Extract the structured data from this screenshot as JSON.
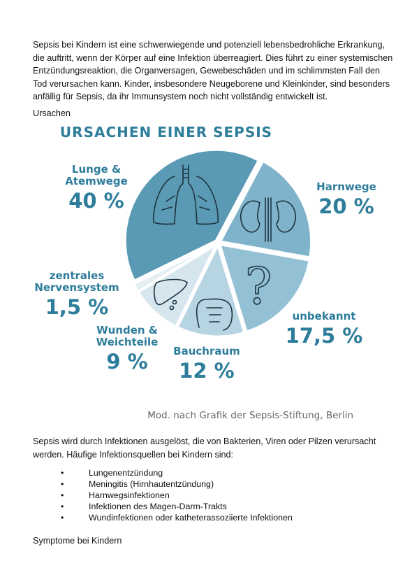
{
  "intro": "Sepsis bei Kindern ist eine schwerwiegende und potenziell lebensbedrohliche Erkrankung, die auftritt, wenn der Körper auf eine Infektion überreagiert. Dies führt zu einer systemischen Entzündungsreaktion, die Organversagen, Gewebeschäden und im schlimmsten Fall den Tod verursachen kann. Kinder, insbesondere Neugeborene und Kleinkinder, sind besonders anfällig für Sepsis, da ihr Immunsystem noch nicht vollständig entwickelt ist.",
  "section_causes": "Ursachen",
  "chart_data": {
    "type": "pie",
    "title": "URSACHEN EINER SEPSIS",
    "credit": "Mod. nach Grafik der Sepsis-Stiftung, Berlin",
    "slices": [
      {
        "label_lines": [
          "Harnwege"
        ],
        "pct_label": "20 %",
        "value": 20,
        "color": "#7fb3cc",
        "icon": "kidneys-icon"
      },
      {
        "label_lines": [
          "unbekannt"
        ],
        "pct_label": "17,5 %",
        "value": 17.5,
        "color": "#93c0d5",
        "icon": "question-mark-icon"
      },
      {
        "label_lines": [
          "Bauchraum"
        ],
        "pct_label": "12 %",
        "value": 12,
        "color": "#b6d4e2",
        "icon": "intestine-icon"
      },
      {
        "label_lines": [
          "Wunden &",
          "Weichteile"
        ],
        "pct_label": "9 %",
        "value": 9,
        "color": "#d6e6ee",
        "icon": "liver-icon"
      },
      {
        "label_lines": [
          "zentrales",
          "Nervensystem"
        ],
        "pct_label": "1,5 %",
        "value": 1.5,
        "color": "#e5eef3",
        "icon": ""
      },
      {
        "label_lines": [
          "Lunge &",
          "Atemwege"
        ],
        "pct_label": "40 %",
        "value": 40,
        "color": "#5b9ab4",
        "icon": "lungs-icon"
      }
    ],
    "text_color": "#2d7d9b"
  },
  "para2": "Sepsis wird durch Infektionen ausgelöst, die von Bakterien, Viren oder Pilzen verursacht werden. Häufige Infektionsquellen bei Kindern sind:",
  "bullets": [
    "Lungenentzündung",
    "Meningitis (Hirnhautentzündung)",
    "Harnwegsinfektionen",
    "Infektionen des Magen-Darm-Trakts",
    "Wundinfektionen oder katheterassoziierte Infektionen"
  ],
  "bullet_char": "•",
  "section_symptoms": "Symptome bei Kindern"
}
